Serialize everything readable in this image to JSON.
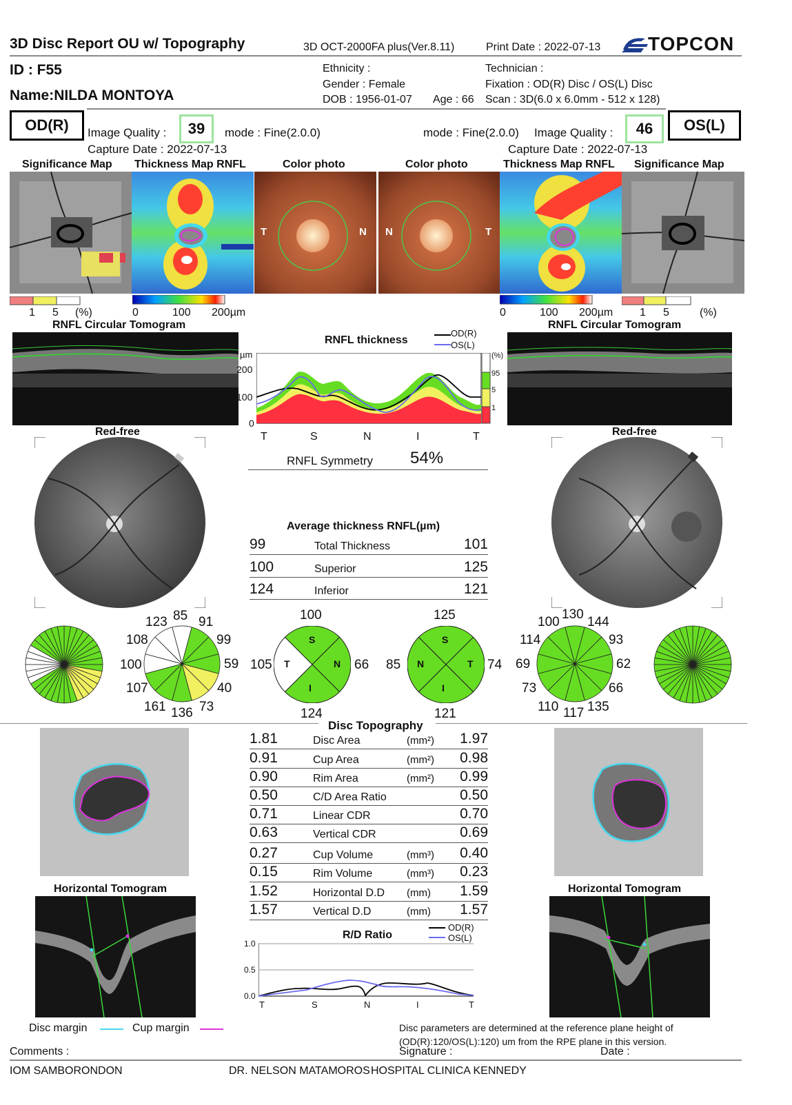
{
  "header": {
    "title": "3D Disc Report OU w/ Topography",
    "device": "3D OCT-2000FA plus(Ver.8.11)",
    "print_date": "Print Date : 2022-07-13",
    "brand": "TOPCON"
  },
  "patient": {
    "id": "ID : F55",
    "name": "Name:NILDA MONTOYA",
    "ethnicity": "Ethnicity :",
    "gender": "Gender : Female",
    "dob": "DOB : 1956-01-07",
    "age": "Age : 66",
    "technician": "Technician :",
    "fixation": "Fixation : OD(R) Disc / OS(L) Disc",
    "scan": "Scan : 3D(6.0 x 6.0mm - 512 x 128)"
  },
  "od": {
    "eye": "OD(R)",
    "iq_label": "Image Quality :",
    "iq_value": "39",
    "mode": "mode : Fine(2.0.0)",
    "capture": "Capture Date : 2022-07-13"
  },
  "os": {
    "eye": "OS(L)",
    "iq_label": "Image Quality :",
    "iq_value": "46",
    "mode": "mode : Fine(2.0.0)",
    "capture": "Capture Date : 2022-07-13"
  },
  "panels": {
    "sig_map": "Significance Map",
    "thick_map": "Thickness Map RNFL",
    "color_photo": "Color photo",
    "circ_tomo": "RNFL Circular Tomogram",
    "red_free": "Red-free",
    "horiz_tomo": "Horizontal Tomogram",
    "T": "T",
    "N": "N"
  },
  "scales": {
    "sig": [
      "1",
      "5",
      "(%)"
    ],
    "thick": [
      "0",
      "100",
      "200µm"
    ]
  },
  "rnfl_chart": {
    "title": "RNFL thickness",
    "legend_od": "OD(R)",
    "legend_os": "OS(L)",
    "unit": "µm",
    "yticks": [
      "200",
      "100",
      "0"
    ],
    "xticks": [
      "T",
      "S",
      "N",
      "I",
      "T"
    ],
    "pct": [
      "(%)",
      "95",
      "5",
      "1"
    ],
    "symmetry_label": "RNFL Symmetry",
    "symmetry_value": "54%"
  },
  "avg": {
    "title": "Average thickness RNFL(µm)",
    "rows": [
      {
        "od": "99",
        "name": "Total Thickness",
        "os": "101"
      },
      {
        "od": "100",
        "name": "Superior",
        "os": "125"
      },
      {
        "od": "124",
        "name": "Inferior",
        "os": "121"
      }
    ]
  },
  "clock_od": [
    "123",
    "85",
    "91",
    "99",
    "59",
    "40",
    "73",
    "136",
    "161",
    "107",
    "100",
    "108"
  ],
  "clock_os": [
    "100",
    "130",
    "144",
    "93",
    "62",
    "66",
    "135",
    "117",
    "110",
    "73",
    "69",
    "114"
  ],
  "quad_od": {
    "S": "100",
    "T": "105",
    "N": "66",
    "I": "124"
  },
  "quad_os": {
    "S": "125",
    "N": "85",
    "T": "74",
    "I": "121"
  },
  "quad_letters": {
    "S": "S",
    "T": "T",
    "N": "N",
    "I": "I"
  },
  "topo": {
    "title": "Disc Topography",
    "rows": [
      {
        "od": "1.81",
        "name": "Disc Area",
        "unit": "(mm²)",
        "os": "1.97"
      },
      {
        "od": "0.91",
        "name": "Cup Area",
        "unit": "(mm²)",
        "os": "0.98"
      },
      {
        "od": "0.90",
        "name": "Rim Area",
        "unit": "(mm²)",
        "os": "0.99"
      },
      {
        "od": "0.50",
        "name": "C/D Area Ratio",
        "unit": "",
        "os": "0.50"
      },
      {
        "od": "0.71",
        "name": "Linear CDR",
        "unit": "",
        "os": "0.70"
      },
      {
        "od": "0.63",
        "name": "Vertical CDR",
        "unit": "",
        "os": "0.69"
      },
      {
        "od": "0.27",
        "name": "Cup Volume",
        "unit": "(mm³)",
        "os": "0.40"
      },
      {
        "od": "0.15",
        "name": "Rim Volume",
        "unit": "(mm³)",
        "os": "0.23"
      },
      {
        "od": "1.52",
        "name": "Horizontal D.D",
        "unit": "(mm)",
        "os": "1.59"
      },
      {
        "od": "1.57",
        "name": "Vertical D.D",
        "unit": "(mm)",
        "os": "1.57"
      }
    ]
  },
  "rd_chart": {
    "title": "R/D Ratio",
    "legend_od": "OD(R)",
    "legend_os": "OS(L)",
    "yticks": [
      "1.0",
      "0.5",
      "0.0"
    ],
    "xticks": [
      "T",
      "S",
      "N",
      "I",
      "T"
    ]
  },
  "footer": {
    "disc_margin": "Disc margin",
    "cup_margin": "Cup margin",
    "note1": "Disc parameters are determined at the reference plane height of",
    "note2": "(OD(R):120/OS(L):120) um from the RPE plane in this version.",
    "comments": "Comments :",
    "signature": "Signature :",
    "date": "Date :",
    "org1": "IOM SAMBORONDON",
    "org2": "DR. NELSON MATAMOROS",
    "org3": "HOSPITAL CLINICA KENNEDY"
  },
  "colors": {
    "green": "#66dd22",
    "yellow": "#f0f060",
    "red": "#ff3040",
    "cyan": "#44d8ee",
    "magenta": "#dd33dd"
  }
}
